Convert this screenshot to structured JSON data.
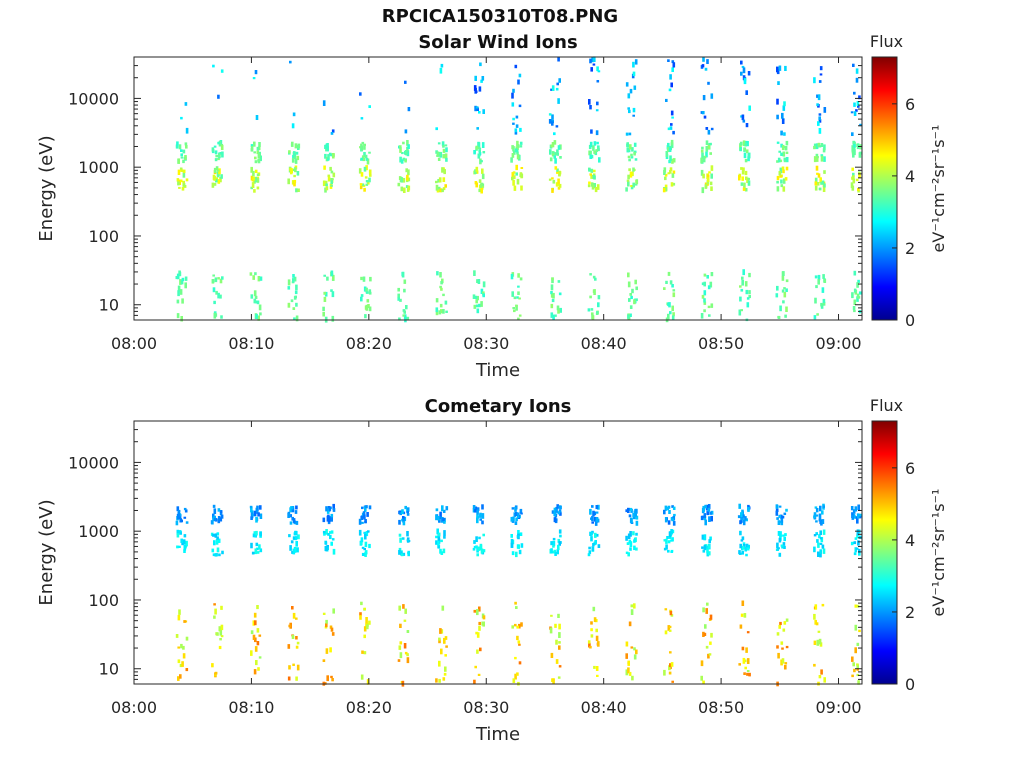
{
  "figure_title": "RPCICA150310T08.PNG",
  "chart_data": [
    {
      "type": "heatmap",
      "title": "Solar Wind Ions",
      "xlabel": "Time",
      "ylabel": "Energy (eV)",
      "x_ticks": [
        "08:00",
        "08:10",
        "08:20",
        "08:30",
        "08:40",
        "08:50",
        "09:00"
      ],
      "x_range_minutes": [
        0,
        62
      ],
      "y_scale": "log",
      "y_ticks": [
        10,
        100,
        1000,
        10000
      ],
      "ylim": [
        6,
        40000
      ],
      "colorbar": {
        "title": "Flux",
        "label": "eV⁻¹cm⁻²sr⁻¹s⁻¹",
        "ticks": [
          0,
          2,
          4,
          6
        ],
        "range": [
          0,
          7.3
        ],
        "colormap": "jet"
      },
      "events_minutes": [
        3.8,
        6.8,
        10.1,
        13.3,
        16.3,
        19.4,
        22.7,
        25.9,
        29.1,
        32.3,
        35.6,
        38.9,
        42.1,
        45.3,
        48.5,
        51.7,
        54.9,
        58.1,
        61.3
      ],
      "bands": [
        {
          "name": "main_peak",
          "energy_eV": [
            450,
            1000
          ],
          "flux_range": [
            3.3,
            4.8
          ]
        },
        {
          "name": "upper_band",
          "energy_eV": [
            1200,
            2300
          ],
          "flux_range": [
            3.0,
            3.8
          ]
        },
        {
          "name": "low_energy",
          "energy_eV": [
            6,
            30
          ],
          "flux_range": [
            3.0,
            3.8
          ]
        },
        {
          "name": "high_energy_scatter",
          "energy_eV": [
            3000,
            38000
          ],
          "flux_range": [
            1.3,
            2.9
          ]
        }
      ]
    },
    {
      "type": "heatmap",
      "title": "Cometary Ions",
      "xlabel": "Time",
      "ylabel": "Energy (eV)",
      "x_ticks": [
        "08:00",
        "08:10",
        "08:20",
        "08:30",
        "08:40",
        "08:50",
        "09:00"
      ],
      "x_range_minutes": [
        0,
        62
      ],
      "y_scale": "log",
      "y_ticks": [
        10,
        100,
        1000,
        10000
      ],
      "ylim": [
        6,
        40000
      ],
      "colorbar": {
        "title": "Flux",
        "label": "eV⁻¹cm⁻²sr⁻¹s⁻¹",
        "ticks": [
          0,
          2,
          4,
          6
        ],
        "range": [
          0,
          7.3
        ],
        "colormap": "jet"
      },
      "events_minutes": [
        3.8,
        6.8,
        10.1,
        13.3,
        16.3,
        19.4,
        22.7,
        25.9,
        29.1,
        32.3,
        35.6,
        38.9,
        42.1,
        45.3,
        48.5,
        51.7,
        54.9,
        58.1,
        61.3
      ],
      "bands": [
        {
          "name": "low_energy_cometary",
          "energy_eV": [
            6,
            90
          ],
          "flux_range": [
            3.8,
            5.6
          ]
        },
        {
          "name": "main_peak",
          "energy_eV": [
            450,
            1000
          ],
          "flux_range": [
            2.3,
            2.9
          ]
        },
        {
          "name": "upper_band",
          "energy_eV": [
            1300,
            2300
          ],
          "flux_range": [
            1.6,
            2.4
          ]
        }
      ]
    }
  ]
}
